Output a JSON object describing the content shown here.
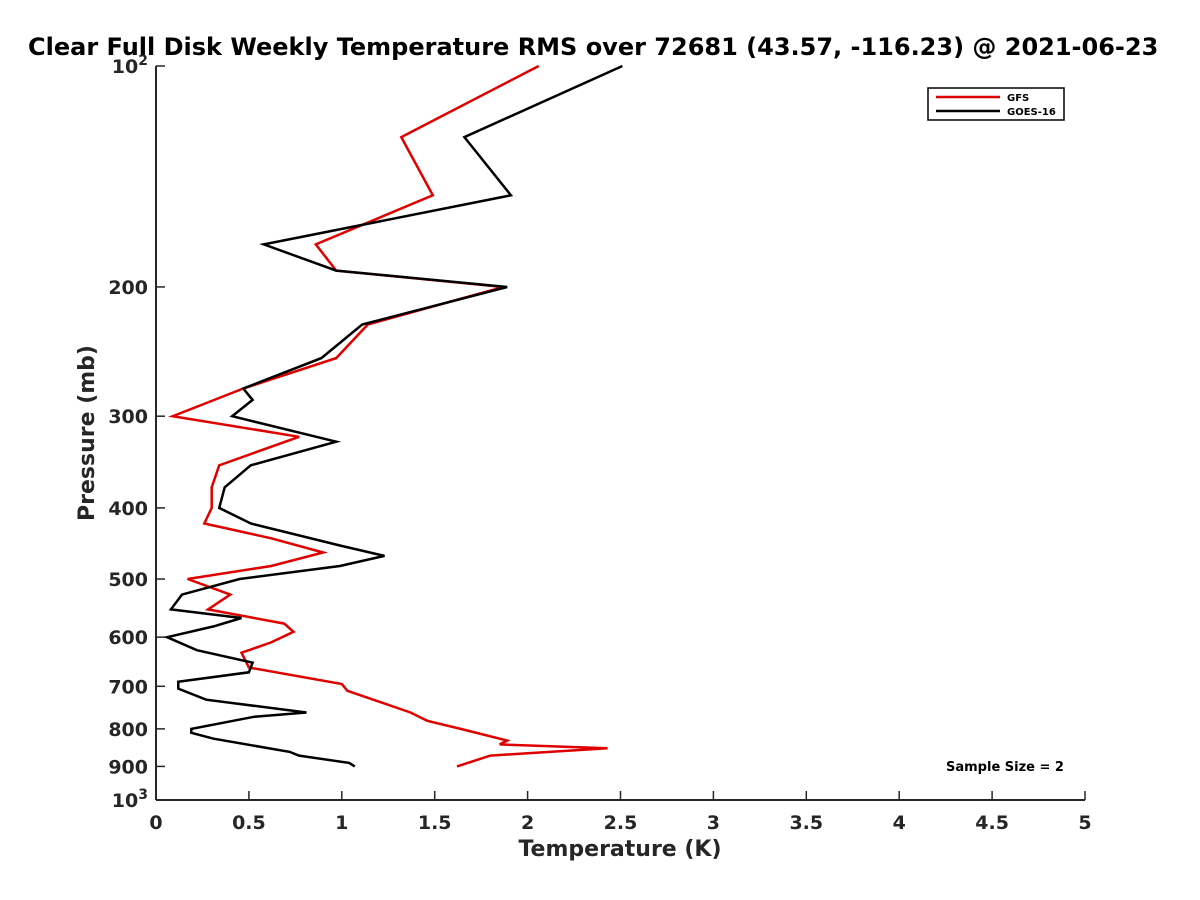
{
  "chart_data": {
    "type": "line",
    "title": "Clear Full Disk Weekly Temperature RMS over 72681 (43.57, -116.23) @ 2021-06-23",
    "xlabel": "Temperature (K)",
    "ylabel": "Pressure (mb)",
    "xlim": [
      0,
      5
    ],
    "ylim": [
      100,
      1000
    ],
    "y_scale": "log",
    "y_reversed": true,
    "grid": false,
    "legend_position": "top-right",
    "x_ticks": [
      "0",
      "0.5",
      "1",
      "1.5",
      "2",
      "2.5",
      "3",
      "3.5",
      "4",
      "4.5",
      "5"
    ],
    "x_tick_values": [
      0,
      0.5,
      1,
      1.5,
      2,
      2.5,
      3,
      3.5,
      4,
      4.5,
      5
    ],
    "y_ticks": [
      {
        "value": 100,
        "base": "10",
        "exp": "2"
      },
      {
        "value": 200,
        "label": "200"
      },
      {
        "value": 300,
        "label": "300"
      },
      {
        "value": 400,
        "label": "400"
      },
      {
        "value": 500,
        "label": "500"
      },
      {
        "value": 600,
        "label": "600"
      },
      {
        "value": 700,
        "label": "700"
      },
      {
        "value": 800,
        "label": "800"
      },
      {
        "value": 900,
        "label": "900"
      },
      {
        "value": 1000,
        "base": "10",
        "exp": "3"
      }
    ],
    "series": [
      {
        "name": "GFS",
        "color": "#e00000",
        "points": [
          [
            2.06,
            100
          ],
          [
            1.32,
            125
          ],
          [
            1.49,
            150
          ],
          [
            0.86,
            175
          ],
          [
            0.97,
            190
          ],
          [
            1.87,
            200
          ],
          [
            1.14,
            225
          ],
          [
            0.97,
            250
          ],
          [
            0.47,
            275
          ],
          [
            0.09,
            300
          ],
          [
            0.77,
            320
          ],
          [
            0.34,
            350
          ],
          [
            0.3,
            375
          ],
          [
            0.3,
            400
          ],
          [
            0.26,
            420
          ],
          [
            0.62,
            440
          ],
          [
            0.9,
            460
          ],
          [
            0.62,
            480
          ],
          [
            0.17,
            500
          ],
          [
            0.4,
            525
          ],
          [
            0.28,
            550
          ],
          [
            0.69,
            575
          ],
          [
            0.74,
            590
          ],
          [
            0.62,
            610
          ],
          [
            0.46,
            630
          ],
          [
            0.5,
            660
          ],
          [
            1.0,
            695
          ],
          [
            1.03,
            710
          ],
          [
            1.37,
            760
          ],
          [
            1.46,
            780
          ],
          [
            1.64,
            800
          ],
          [
            1.89,
            830
          ],
          [
            1.85,
            840
          ],
          [
            2.43,
            850
          ],
          [
            1.8,
            870
          ],
          [
            1.62,
            900
          ]
        ]
      },
      {
        "name": "GOES-16",
        "color": "#000000",
        "points": [
          [
            2.51,
            100
          ],
          [
            1.66,
            125
          ],
          [
            1.91,
            150
          ],
          [
            0.58,
            175
          ],
          [
            0.97,
            190
          ],
          [
            1.89,
            200
          ],
          [
            1.11,
            225
          ],
          [
            0.89,
            250
          ],
          [
            0.47,
            275
          ],
          [
            0.52,
            285
          ],
          [
            0.41,
            300
          ],
          [
            0.97,
            325
          ],
          [
            0.51,
            350
          ],
          [
            0.37,
            375
          ],
          [
            0.34,
            400
          ],
          [
            0.51,
            420
          ],
          [
            0.99,
            450
          ],
          [
            1.23,
            465
          ],
          [
            0.99,
            480
          ],
          [
            0.45,
            500
          ],
          [
            0.14,
            525
          ],
          [
            0.08,
            550
          ],
          [
            0.46,
            565
          ],
          [
            0.31,
            580
          ],
          [
            0.06,
            600
          ],
          [
            0.22,
            625
          ],
          [
            0.52,
            650
          ],
          [
            0.5,
            670
          ],
          [
            0.12,
            690
          ],
          [
            0.12,
            705
          ],
          [
            0.27,
            730
          ],
          [
            0.81,
            760
          ],
          [
            0.53,
            770
          ],
          [
            0.19,
            800
          ],
          [
            0.19,
            810
          ],
          [
            0.31,
            825
          ],
          [
            0.72,
            860
          ],
          [
            0.77,
            870
          ],
          [
            1.04,
            890
          ],
          [
            1.07,
            900
          ]
        ]
      }
    ],
    "annotations": [
      {
        "text": "Sample Size = 2",
        "position": "bottom-right"
      }
    ]
  }
}
